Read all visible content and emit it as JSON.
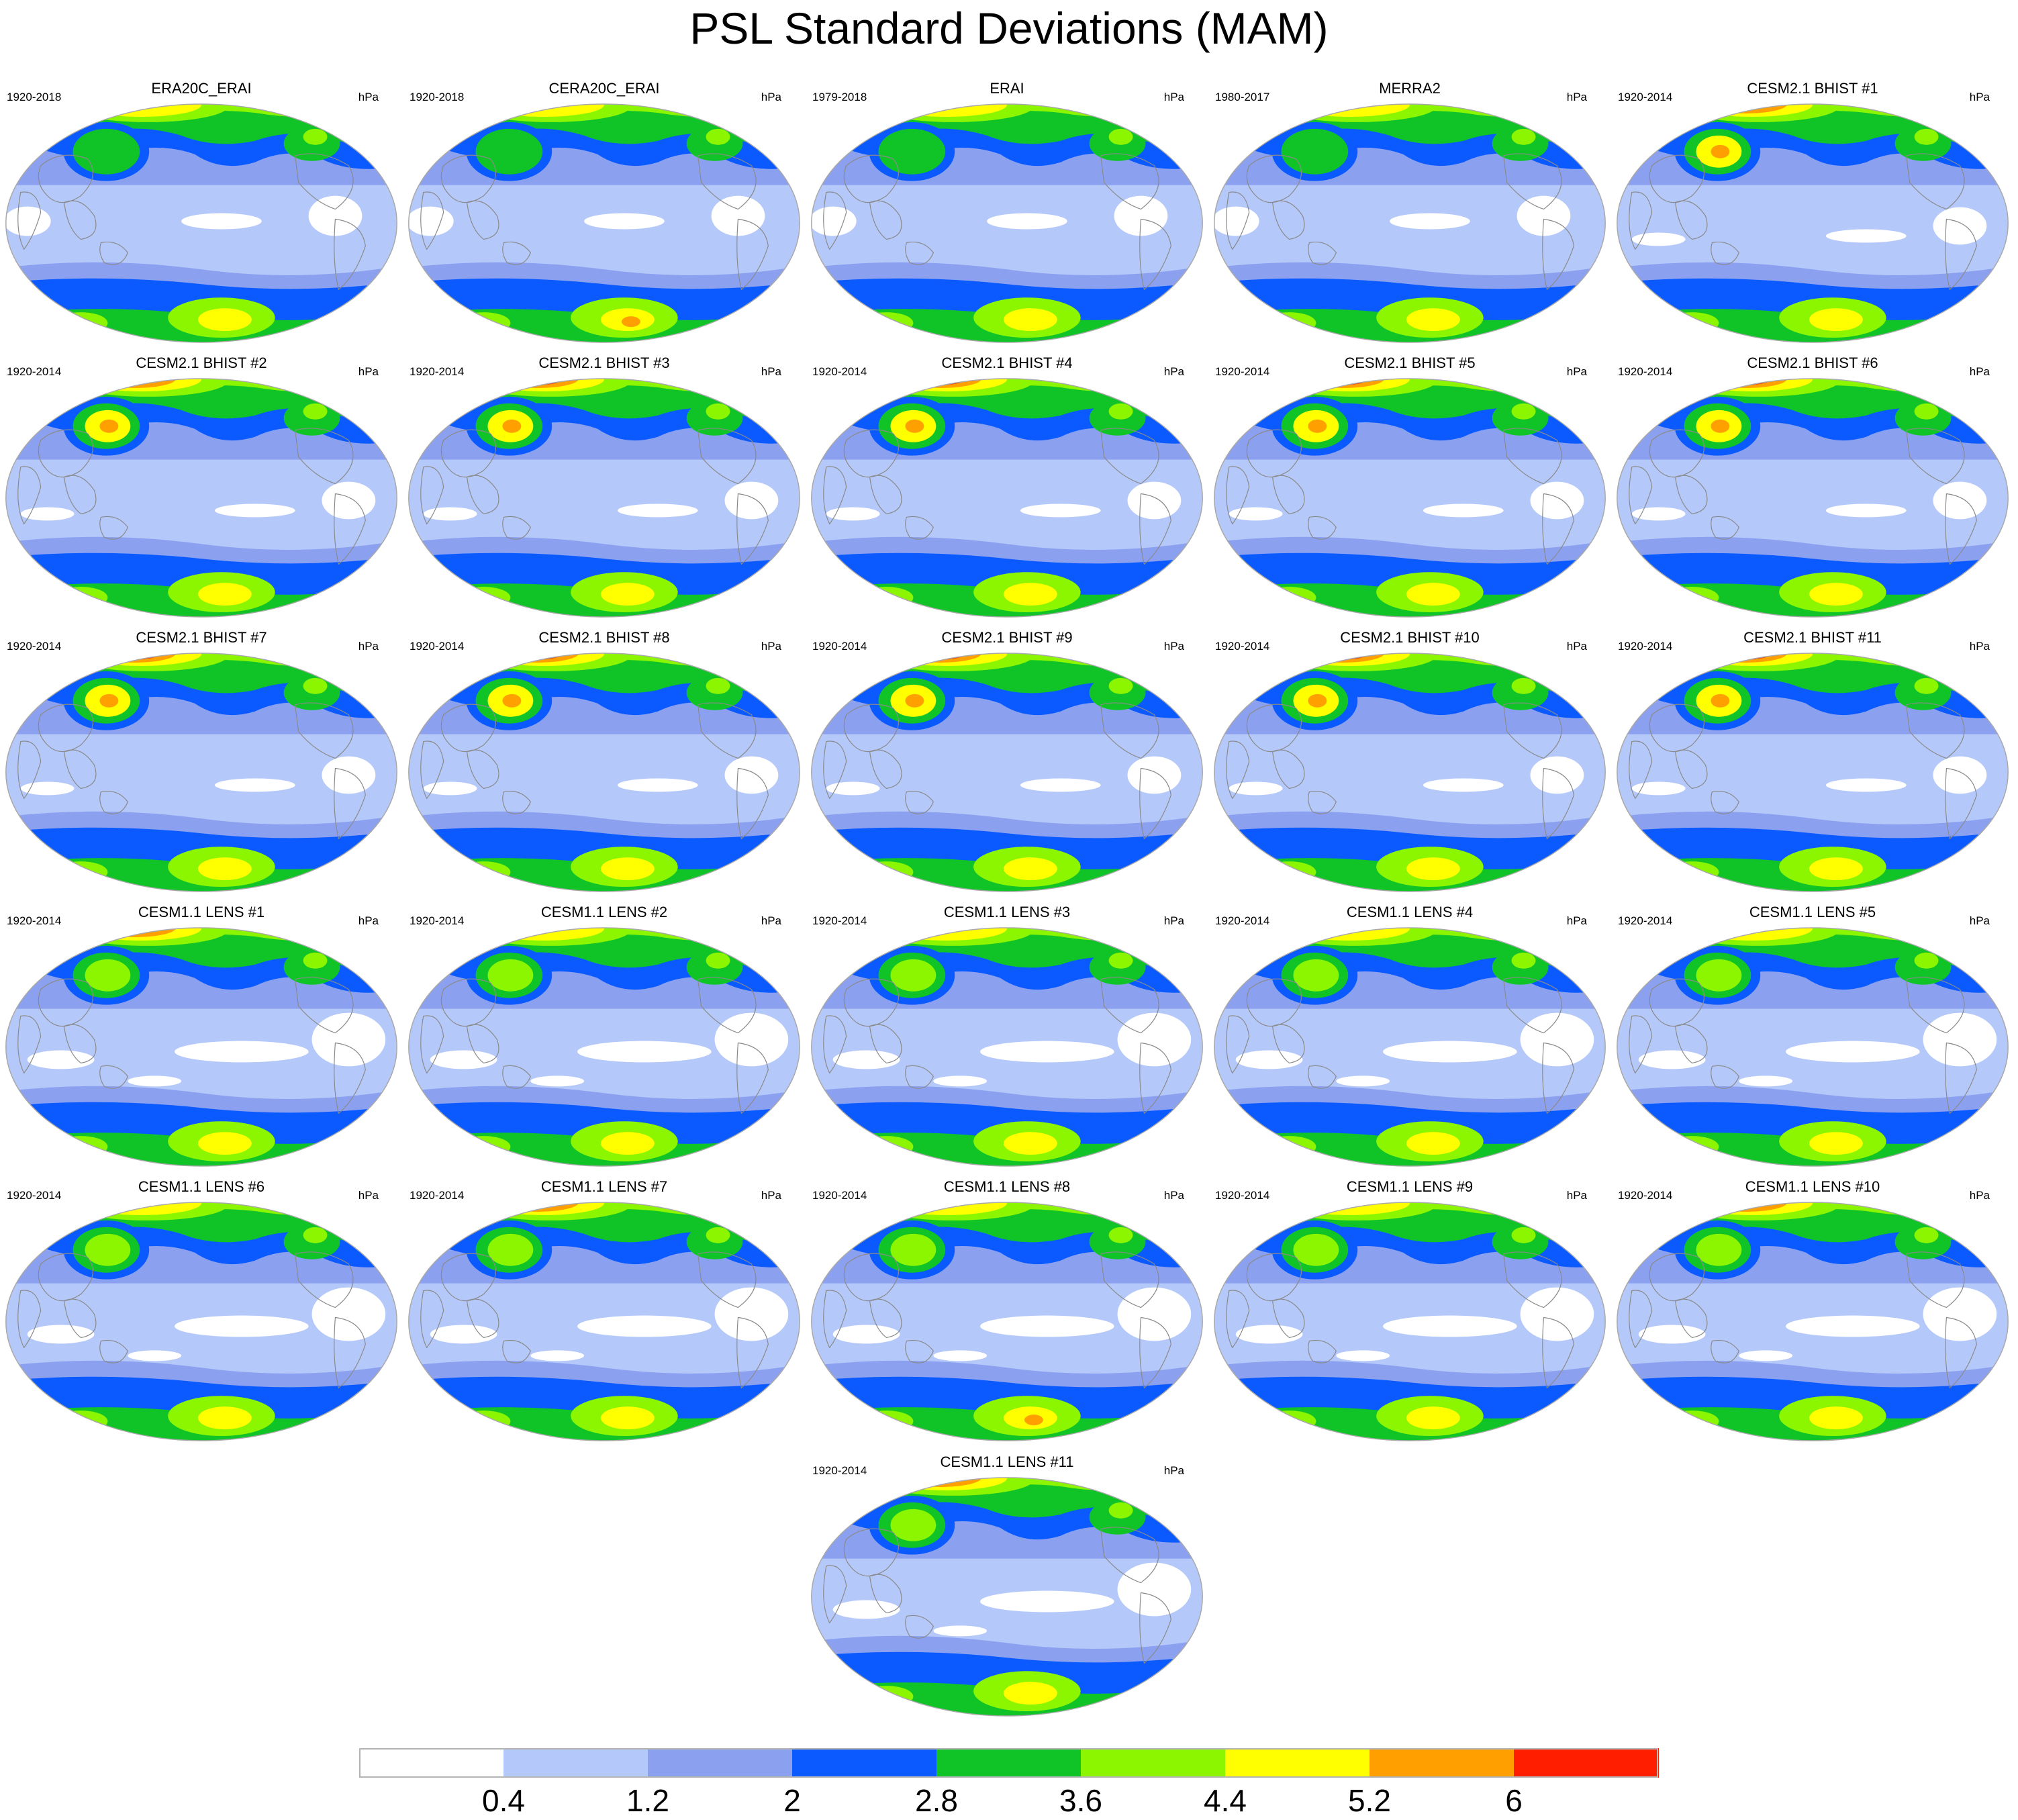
{
  "title": "PSL Standard Deviations (MAM)",
  "units": "hPa",
  "colors": {
    "coast": "#8a8a8a",
    "outline": "#a9a9a9",
    "levels": [
      "#ffffff",
      "#b4c8fa",
      "#8ca0f0",
      "#0a5aff",
      "#10c428",
      "#8cf500",
      "#ffff00",
      "#ffa000",
      "#ff1e00"
    ]
  },
  "colorbar": {
    "labels": [
      "0.4",
      "1.2",
      "2",
      "2.8",
      "3.6",
      "4.4",
      "5.2",
      "6"
    ]
  },
  "panels": [
    {
      "title": "ERA20C_ERAI",
      "years": "1920-2018",
      "units": "hPa",
      "kind": "obs",
      "np": 1,
      "ale": 4,
      "atl": 3,
      "ant": 4.6,
      "nh": 0
    },
    {
      "title": "CERA20C_ERAI",
      "years": "1920-2018",
      "units": "hPa",
      "kind": "obs",
      "np": 1,
      "ale": 4,
      "atl": 3,
      "ant": 5,
      "nh": 0
    },
    {
      "title": "ERAI",
      "years": "1979-2018",
      "units": "hPa",
      "kind": "obs",
      "np": 2,
      "ale": 4,
      "atl": 3,
      "ant": 4.6,
      "nh": 0
    },
    {
      "title": "MERRA2",
      "years": "1980-2017",
      "units": "hPa",
      "kind": "obs",
      "np": 2,
      "ale": 4,
      "atl": 3,
      "ant": 4.6,
      "nh": 0
    },
    {
      "title": "CESM2.1 BHIST #1",
      "years": "1920-2014",
      "units": "hPa",
      "kind": "cesm2",
      "np": 7,
      "ale": 6,
      "atl": 3,
      "ant": 4,
      "nh": 1
    },
    {
      "title": "CESM2.1 BHIST #2",
      "years": "1920-2014",
      "units": "hPa",
      "kind": "cesm2",
      "np": 7,
      "ale": 6,
      "atl": 3,
      "ant": 4.6,
      "nh": 1
    },
    {
      "title": "CESM2.1 BHIST #3",
      "years": "1920-2014",
      "units": "hPa",
      "kind": "cesm2",
      "np": 8,
      "ale": 6,
      "atl": 3,
      "ant": 4.6,
      "nh": 1
    },
    {
      "title": "CESM2.1 BHIST #4",
      "years": "1920-2014",
      "units": "hPa",
      "kind": "cesm2",
      "np": 8,
      "ale": 6,
      "atl": 3,
      "ant": 4.6,
      "nh": 1
    },
    {
      "title": "CESM2.1 BHIST #5",
      "years": "1920-2014",
      "units": "hPa",
      "kind": "cesm2",
      "np": 8,
      "ale": 6,
      "atl": 3,
      "ant": 4.6,
      "nh": 1
    },
    {
      "title": "CESM2.1 BHIST #6",
      "years": "1920-2014",
      "units": "hPa",
      "kind": "cesm2",
      "np": 8,
      "ale": 6,
      "atl": 3,
      "ant": 4.6,
      "nh": 1
    },
    {
      "title": "CESM2.1 BHIST #7",
      "years": "1920-2014",
      "units": "hPa",
      "kind": "cesm2",
      "np": 8,
      "ale": 6,
      "atl": 3,
      "ant": 4.6,
      "nh": 1
    },
    {
      "title": "CESM2.1 BHIST #8",
      "years": "1920-2014",
      "units": "hPa",
      "kind": "cesm2",
      "np": 8,
      "ale": 6,
      "atl": 3,
      "ant": 4.6,
      "nh": 1
    },
    {
      "title": "CESM2.1 BHIST #9",
      "years": "1920-2014",
      "units": "hPa",
      "kind": "cesm2",
      "np": 8,
      "ale": 6,
      "atl": 3,
      "ant": 4.6,
      "nh": 1
    },
    {
      "title": "CESM2.1 BHIST #10",
      "years": "1920-2014",
      "units": "hPa",
      "kind": "cesm2",
      "np": 8,
      "ale": 6,
      "atl": 3,
      "ant": 4.6,
      "nh": 1
    },
    {
      "title": "CESM2.1 BHIST #11",
      "years": "1920-2014",
      "units": "hPa",
      "kind": "cesm2",
      "np": 8,
      "ale": 6,
      "atl": 3,
      "ant": 4.6,
      "nh": 1
    },
    {
      "title": "CESM1.1 LENS #1",
      "years": "1920-2014",
      "units": "hPa",
      "kind": "cesm1",
      "np": 7,
      "ale": 5,
      "atl": 3,
      "ant": 4.6,
      "nh": 1
    },
    {
      "title": "CESM1.1 LENS #2",
      "years": "1920-2014",
      "units": "hPa",
      "kind": "cesm1",
      "np": 6,
      "ale": 5,
      "atl": 3,
      "ant": 4.6,
      "nh": 1
    },
    {
      "title": "CESM1.1 LENS #3",
      "years": "1920-2014",
      "units": "hPa",
      "kind": "cesm1",
      "np": 6,
      "ale": 5,
      "atl": 3,
      "ant": 4.6,
      "nh": 1
    },
    {
      "title": "CESM1.1 LENS #4",
      "years": "1920-2014",
      "units": "hPa",
      "kind": "cesm1",
      "np": 6,
      "ale": 5,
      "atl": 3,
      "ant": 4,
      "nh": 1
    },
    {
      "title": "CESM1.1 LENS #5",
      "years": "1920-2014",
      "units": "hPa",
      "kind": "cesm1",
      "np": 6,
      "ale": 5,
      "atl": 3,
      "ant": 4,
      "nh": 1
    },
    {
      "title": "CESM1.1 LENS #6",
      "years": "1920-2014",
      "units": "hPa",
      "kind": "cesm1",
      "np": 6,
      "ale": 5,
      "atl": 3,
      "ant": 4.6,
      "nh": 1
    },
    {
      "title": "CESM1.1 LENS #7",
      "years": "1920-2014",
      "units": "hPa",
      "kind": "cesm1",
      "np": 7,
      "ale": 5,
      "atl": 3,
      "ant": 4.6,
      "nh": 1
    },
    {
      "title": "CESM1.1 LENS #8",
      "years": "1920-2014",
      "units": "hPa",
      "kind": "cesm1",
      "np": 6,
      "ale": 5,
      "atl": 3,
      "ant": 5,
      "nh": 1
    },
    {
      "title": "CESM1.1 LENS #9",
      "years": "1920-2014",
      "units": "hPa",
      "kind": "cesm1",
      "np": 6,
      "ale": 5,
      "atl": 3,
      "ant": 4.6,
      "nh": 1
    },
    {
      "title": "CESM1.1 LENS #10",
      "years": "1920-2014",
      "units": "hPa",
      "kind": "cesm1",
      "np": 7,
      "ale": 5,
      "atl": 3,
      "ant": 4.6,
      "nh": 1
    },
    {
      "title": "CESM1.1 LENS #11",
      "years": "1920-2014",
      "units": "hPa",
      "kind": "cesm1",
      "np": 7,
      "ale": 5,
      "atl": 3,
      "ant": 4.6,
      "nh": 1
    }
  ]
}
